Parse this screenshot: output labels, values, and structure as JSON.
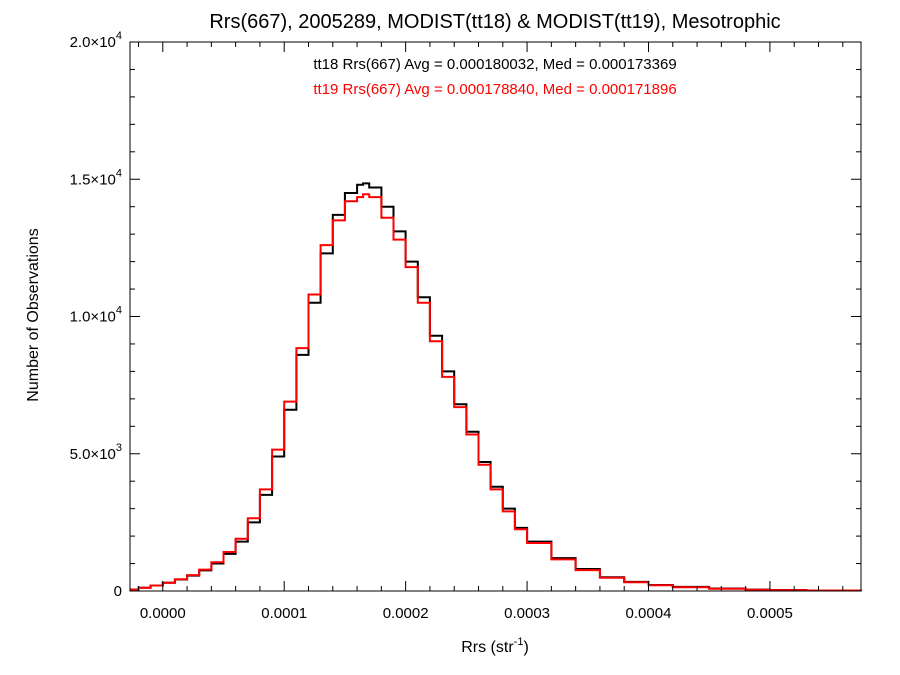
{
  "chart_data": {
    "type": "line",
    "title": "Rrs(667), 2005289, MODIST(tt18) & MODIST(tt19), Mesotrophic",
    "xlabel_base": "Rrs (str",
    "xlabel_sup": "-1",
    "xlabel_end": ")",
    "ylabel": "Number of Observations",
    "xlim": [
      -2.7e-05,
      0.000575
    ],
    "ylim": [
      0,
      20000
    ],
    "x_ticks": [
      {
        "value": 0.0,
        "label": "0.0000"
      },
      {
        "value": 0.0001,
        "label": "0.0001"
      },
      {
        "value": 0.0002,
        "label": "0.0002"
      },
      {
        "value": 0.0003,
        "label": "0.0003"
      },
      {
        "value": 0.0004,
        "label": "0.0004"
      },
      {
        "value": 0.0005,
        "label": "0.0005"
      }
    ],
    "y_ticks": [
      {
        "value": 0,
        "base": "0",
        "exp": ""
      },
      {
        "value": 5000,
        "base": "5.0×10",
        "exp": "3"
      },
      {
        "value": 10000,
        "base": "1.0×10",
        "exp": "4"
      },
      {
        "value": 15000,
        "base": "1.5×10",
        "exp": "4"
      },
      {
        "value": 20000,
        "base": "2.0×10",
        "exp": "4"
      }
    ],
    "annotations": [
      {
        "text": "tt18 Rrs(667) Avg = 0.000180032, Med = 0.000173369",
        "color": "#000000"
      },
      {
        "text": "tt19 Rrs(667) Avg = 0.000178840, Med = 0.000171896",
        "color": "#ff0000"
      }
    ],
    "series": [
      {
        "color": "#000000",
        "x": [
          -2.7e-05,
          -2e-05,
          -1e-05,
          0.0,
          1e-05,
          2e-05,
          3e-05,
          4e-05,
          5e-05,
          6e-05,
          7e-05,
          8e-05,
          9e-05,
          0.0001,
          0.00011,
          0.00012,
          0.00013,
          0.00014,
          0.00015,
          0.00016,
          0.000165,
          0.00017,
          0.00018,
          0.00019,
          0.0002,
          0.00021,
          0.00022,
          0.00023,
          0.00024,
          0.00025,
          0.00026,
          0.00027,
          0.00028,
          0.00029,
          0.0003,
          0.00032,
          0.00034,
          0.00036,
          0.00038,
          0.0004,
          0.00042,
          0.00045,
          0.00048,
          0.0005,
          0.00053,
          0.000575
        ],
        "y": [
          50,
          120,
          200,
          300,
          420,
          560,
          750,
          1000,
          1350,
          1800,
          2500,
          3500,
          4900,
          6600,
          8600,
          10500,
          12300,
          13700,
          14500,
          14800,
          14850,
          14700,
          14000,
          13100,
          12000,
          10700,
          9300,
          8000,
          6800,
          5800,
          4700,
          3800,
          3000,
          2300,
          1800,
          1200,
          800,
          500,
          330,
          220,
          150,
          90,
          50,
          35,
          20,
          10
        ]
      },
      {
        "color": "#ff0000",
        "x": [
          -2.7e-05,
          -2e-05,
          -1e-05,
          0.0,
          1e-05,
          2e-05,
          3e-05,
          4e-05,
          5e-05,
          6e-05,
          7e-05,
          8e-05,
          9e-05,
          0.0001,
          0.00011,
          0.00012,
          0.00013,
          0.00014,
          0.00015,
          0.00016,
          0.000165,
          0.00017,
          0.00018,
          0.00019,
          0.0002,
          0.00021,
          0.00022,
          0.00023,
          0.00024,
          0.00025,
          0.00026,
          0.00027,
          0.00028,
          0.00029,
          0.0003,
          0.00032,
          0.00034,
          0.00036,
          0.00038,
          0.0004,
          0.00042,
          0.00045,
          0.00048,
          0.0005,
          0.00053,
          0.000575
        ],
        "y": [
          50,
          120,
          200,
          300,
          430,
          580,
          780,
          1050,
          1420,
          1900,
          2650,
          3700,
          5150,
          6900,
          8850,
          10800,
          12600,
          13500,
          14200,
          14350,
          14450,
          14350,
          13600,
          12800,
          11800,
          10500,
          9100,
          7800,
          6700,
          5700,
          4600,
          3700,
          2900,
          2250,
          1750,
          1150,
          760,
          480,
          320,
          210,
          140,
          85,
          48,
          32,
          18,
          10
        ]
      }
    ]
  }
}
